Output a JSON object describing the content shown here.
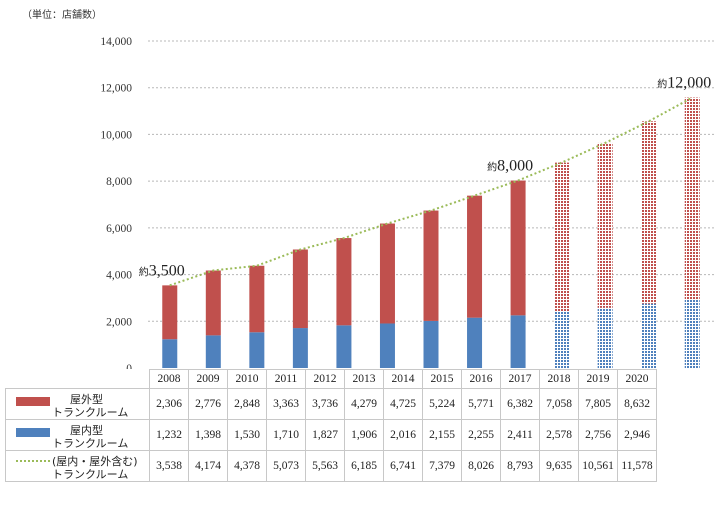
{
  "chart_data": {
    "type": "bar",
    "title": "",
    "unit_label": "（単位：店舗数）",
    "xlabel": "",
    "ylabel": "",
    "ylim": [
      0,
      14000
    ],
    "yticks": [
      "0",
      "2,000",
      "4,000",
      "6,000",
      "8,000",
      "10,000",
      "12,000",
      "14,000"
    ],
    "ytick_values": [
      0,
      2000,
      4000,
      6000,
      8000,
      10000,
      12000,
      14000
    ],
    "categories": [
      "2008",
      "2009",
      "2010",
      "2011",
      "2012",
      "2013",
      "2014",
      "2015",
      "2016",
      "2017",
      "2018",
      "2019",
      "2020"
    ],
    "forecast_from": "2017",
    "series": [
      {
        "name": "屋外型トランクルーム",
        "label_lines": [
          "屋外型",
          "トランクルーム"
        ],
        "color": "#c0504d",
        "values": [
          2306,
          2776,
          2848,
          3363,
          3736,
          4279,
          4725,
          5224,
          5771,
          6382,
          7058,
          7805,
          8632
        ],
        "display": [
          "2,306",
          "2,776",
          "2,848",
          "3,363",
          "3,736",
          "4,279",
          "4,725",
          "5,224",
          "5,771",
          "6,382",
          "7,058",
          "7,805",
          "8,632"
        ]
      },
      {
        "name": "屋内型トランクルーム",
        "label_lines": [
          "屋内型",
          "トランクルーム"
        ],
        "color": "#4f81bd",
        "values": [
          1232,
          1398,
          1530,
          1710,
          1827,
          1906,
          2016,
          2155,
          2255,
          2411,
          2578,
          2756,
          2946
        ],
        "display": [
          "1,232",
          "1,398",
          "1,530",
          "1,710",
          "1,827",
          "1,906",
          "2,016",
          "2,155",
          "2,255",
          "2,411",
          "2,578",
          "2,756",
          "2,946"
        ]
      },
      {
        "name": "(屋内・屋外含む)トランクルーム",
        "label_lines": [
          "(屋内・屋外含む)",
          "トランクルーム"
        ],
        "color": "#9bbb59",
        "type": "line",
        "values": [
          3538,
          4174,
          4378,
          5073,
          5563,
          6185,
          6741,
          7379,
          8026,
          8793,
          9635,
          10561,
          11578
        ],
        "display": [
          "3,538",
          "4,174",
          "4,378",
          "5,073",
          "5,563",
          "6,185",
          "6,741",
          "7,379",
          "8,026",
          "8,793",
          "9,635",
          "10,561",
          "11,578"
        ]
      }
    ],
    "annotations": [
      {
        "category": "2008",
        "prefix": "約",
        "text": "3,500"
      },
      {
        "category": "2016",
        "prefix": "約",
        "text": "8,000"
      },
      {
        "category": "2020",
        "prefix": "約",
        "text": "12,000"
      }
    ]
  }
}
